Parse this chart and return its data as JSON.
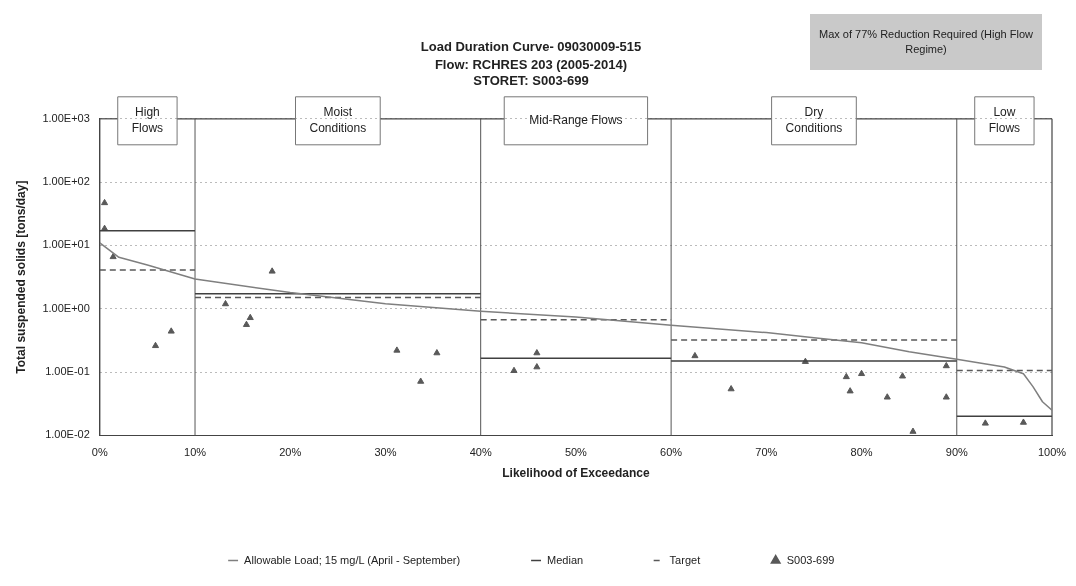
{
  "chart_data": {
    "type": "line",
    "title": "Load Duration Curve- 09030009-515",
    "subtitle": "Flow: RCHRES 203 (2005-2014)\nSTORET: S003-699",
    "xlabel": "Likelihood of Exceedance",
    "ylabel": "Total suspended solids [tons/day]",
    "annotations": [
      "Max of 77% Reduction Required (High Flow Regime)",
      "High Flows",
      "Moist Conditions",
      "Mid-Range Flows",
      "Dry Conditions",
      "Low Flows"
    ],
    "series": [
      {
        "name": "Allowable Load; 15 mg/L (April - September)",
        "type": "line",
        "color": "#7f7f7f",
        "marker": "none",
        "line_style": "solid",
        "x": [
          0,
          2,
          5,
          10,
          20,
          30,
          40,
          50,
          60,
          70,
          75,
          80,
          85,
          90,
          95,
          97,
          98,
          99,
          100
        ],
        "values": [
          11,
          6.5,
          4.9,
          2.96,
          1.8,
          1.2,
          0.91,
          0.74,
          0.55,
          0.42,
          0.35,
          0.29,
          0.21,
          0.16,
          0.12,
          0.094,
          0.059,
          0.034,
          0.025
        ]
      },
      {
        "name": "Median",
        "type": "line",
        "color": "#404040",
        "marker": "none",
        "line_style": "solid",
        "x": [
          0,
          10,
          null,
          10,
          40,
          null,
          40,
          60,
          null,
          60,
          90,
          null,
          90,
          100
        ],
        "values": [
          17,
          17,
          null,
          1.72,
          1.72,
          null,
          0.166,
          0.166,
          null,
          0.149,
          0.149,
          null,
          0.02,
          0.02
        ]
      },
      {
        "name": "Target",
        "type": "line",
        "color": "#595959",
        "marker": "none",
        "line_style": "dashed",
        "x": [
          0,
          10,
          null,
          10,
          40,
          null,
          40,
          60,
          null,
          60,
          90,
          null,
          90,
          100
        ],
        "values": [
          4.1,
          4.1,
          null,
          1.5,
          1.5,
          null,
          0.67,
          0.67,
          null,
          0.32,
          0.32,
          null,
          0.106,
          0.106
        ]
      },
      {
        "name": "S003-699",
        "type": "scatter",
        "color": "#595959",
        "marker": "triangle",
        "x": [
          0.5,
          0.5,
          1.4,
          5.85,
          7.5,
          13.2,
          15.4,
          15.8,
          18.1,
          31.2,
          33.7,
          35.4,
          43.5,
          45.9,
          45.9,
          62.5,
          66.3,
          74.1,
          78.4,
          78.8,
          80,
          82.7,
          84.3,
          85.4,
          88.9,
          88.9,
          93,
          97
        ],
        "values": [
          47,
          18.4,
          6.6,
          0.26,
          0.44,
          1.19,
          0.56,
          0.72,
          3.9,
          0.22,
          0.071,
          0.2,
          0.105,
          0.2,
          0.12,
          0.18,
          0.054,
          0.146,
          0.084,
          0.05,
          0.094,
          0.04,
          0.086,
          0.0115,
          0.125,
          0.04,
          0.0155,
          0.016
        ]
      }
    ],
    "ref_lines": [
      {
        "axis": "x",
        "value": 10
      },
      {
        "axis": "x",
        "value": 40
      },
      {
        "axis": "x",
        "value": 60
      },
      {
        "axis": "x",
        "value": 90
      }
    ],
    "xlim": [
      0,
      100
    ],
    "xticks": [
      {
        "value": 0,
        "label": "0%"
      },
      {
        "value": 10,
        "label": "10%"
      },
      {
        "value": 20,
        "label": "20%"
      },
      {
        "value": 30,
        "label": "30%"
      },
      {
        "value": 40,
        "label": "40%"
      },
      {
        "value": 50,
        "label": "50%"
      },
      {
        "value": 60,
        "label": "60%"
      },
      {
        "value": 70,
        "label": "70%"
      },
      {
        "value": 80,
        "label": "80%"
      },
      {
        "value": 90,
        "label": "90%"
      },
      {
        "value": 100,
        "label": "100%"
      }
    ],
    "ylim": [
      0.01,
      1000
    ],
    "log": "y",
    "yticks": [
      {
        "value": 0.01,
        "label": "1.00E-02"
      },
      {
        "value": 0.1,
        "label": "1.00E-01"
      },
      {
        "value": 1,
        "label": "1.00E+00"
      },
      {
        "value": 10,
        "label": "1.00E+01"
      },
      {
        "value": 100,
        "label": "1.00E+02"
      },
      {
        "value": 1000,
        "label": "1.00E+03"
      }
    ],
    "grid": "y",
    "legend": "bottom"
  }
}
